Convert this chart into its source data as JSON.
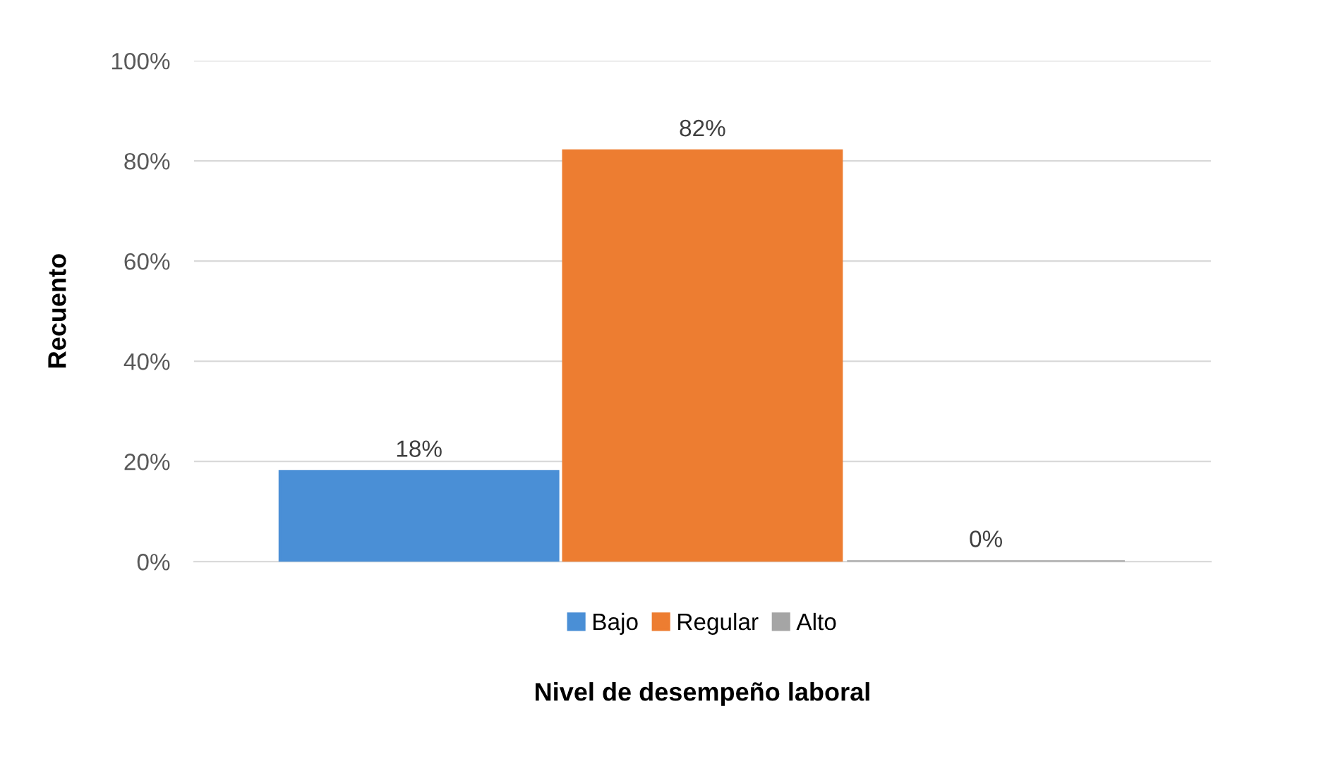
{
  "chart_data": {
    "type": "bar",
    "xlabel": "Nivel de desempeño laboral",
    "ylabel": "Recuento",
    "categories": [
      null
    ],
    "series": [
      {
        "name": "Bajo",
        "color": "#4a8fd6",
        "values": [
          18
        ],
        "value_labels": [
          "18%"
        ]
      },
      {
        "name": "Regular",
        "color": "#ed7d31",
        "values": [
          82
        ],
        "value_labels": [
          "82%"
        ]
      },
      {
        "name": "Alto",
        "color": "#a5a5a5",
        "values": [
          0
        ],
        "value_labels": [
          "0%"
        ]
      }
    ],
    "ylim": [
      0,
      100
    ],
    "yticks": [
      {
        "value": 0,
        "label": "0%"
      },
      {
        "value": 20,
        "label": "20%"
      },
      {
        "value": 40,
        "label": "40%"
      },
      {
        "value": 60,
        "label": "60%"
      },
      {
        "value": 80,
        "label": "80%"
      },
      {
        "value": 100,
        "label": "100%"
      }
    ],
    "grid": "y",
    "legend": "bottom"
  }
}
